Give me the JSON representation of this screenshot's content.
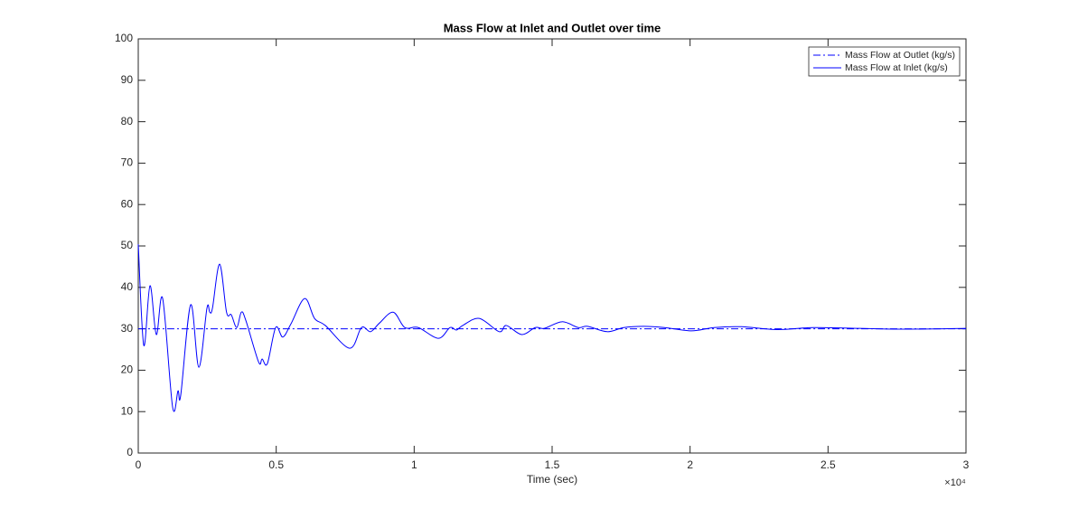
{
  "chart_data": {
    "type": "line",
    "title": "Mass Flow at Inlet and Outlet over time",
    "x_label": "Time (sec)",
    "x_multiplier_label": "×10⁴",
    "xlim": [
      0,
      30000
    ],
    "ylim": [
      0,
      100
    ],
    "xticks": [
      0,
      {
        "value": 5000,
        "label": "0.5"
      },
      {
        "value": 10000,
        "label": "1"
      },
      {
        "value": 15000,
        "label": "1.5"
      },
      {
        "value": 20000,
        "label": "2"
      },
      {
        "value": 25000,
        "label": "2.5"
      },
      {
        "value": 30000,
        "label": "3"
      }
    ],
    "yticks": [
      0,
      10,
      20,
      30,
      40,
      50,
      60,
      70,
      80,
      90,
      100
    ],
    "legend": "top-right",
    "series": [
      {
        "name": "Mass Flow at Outlet (kg/s)",
        "color": "#0000ff",
        "dash": "dash-dot",
        "x": [
          0,
          30000
        ],
        "values": [
          30,
          30
        ]
      },
      {
        "name": "Mass Flow at Inlet (kg/s)",
        "color": "#0000ff",
        "dash": "solid",
        "x": [
          0,
          200,
          425,
          655,
          885,
          1245,
          1440,
          1540,
          1900,
          2195,
          2490,
          2590,
          2690,
          2950,
          3200,
          3370,
          3570,
          3735,
          3900,
          4360,
          4490,
          4680,
          4980,
          5240,
          5535,
          6030,
          6390,
          6780,
          7665,
          8090,
          8420,
          8745,
          9240,
          9660,
          10150,
          10875,
          11300,
          11530,
          11760,
          12360,
          13080,
          13340,
          13900,
          14390,
          14720,
          15360,
          15950,
          16280,
          17000,
          17600,
          18320,
          19070,
          20050,
          20870,
          21850,
          23160,
          24470,
          26110,
          27750,
          30000
        ],
        "values": [
          50.4,
          26,
          40.4,
          28.6,
          37.3,
          11.1,
          15,
          14,
          35.8,
          20.7,
          35,
          34,
          35,
          45.6,
          34,
          33.4,
          30.3,
          34,
          32,
          22,
          22.7,
          21.6,
          30.3,
          28,
          31.2,
          37.3,
          32.5,
          30.8,
          25.3,
          30.3,
          29.3,
          31.4,
          34,
          30.3,
          30.3,
          27.7,
          30.3,
          29.7,
          30.8,
          32.5,
          29.3,
          30.8,
          28.6,
          30.3,
          30.1,
          31.7,
          30.3,
          30.6,
          29.3,
          30.3,
          30.6,
          30.3,
          29.5,
          30.3,
          30.5,
          29.8,
          30.3,
          30.1,
          29.9,
          30.1
        ]
      }
    ]
  }
}
